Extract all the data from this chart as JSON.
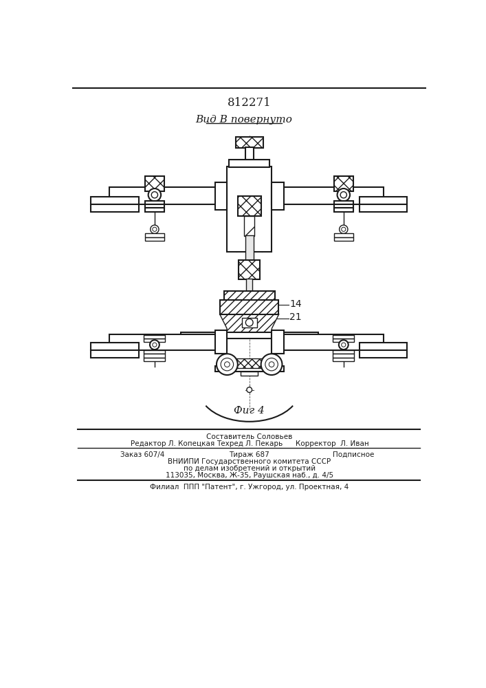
{
  "patent_number": "812271",
  "view_label": "Вид В повернуто",
  "fig_label": "Фиг 4",
  "label_14": "14",
  "label_21": "21",
  "footer_line1": "Составитель Соловьев",
  "footer_line2_left": "Редактор Л. Копецкая",
  "footer_line2_center": "Техред Л. Пекарь",
  "footer_line2_right": "Корректор  Л. Иван",
  "footer_line3_left": "Заказ 607/4",
  "footer_line3_center": "Тираж 687",
  "footer_line3_right": "Подписное",
  "footer_line4": "ВНИИПИ Государственного комитета СССР",
  "footer_line5": "по делам изобретений и открытий",
  "footer_line6": "113035, Москва, Ж-35, Раушская наб., д. 4/5",
  "footer_line7": "Филиал  ППП \"Патент\", г. Ужгород, ул. Проектная, 4",
  "bg_color": "#ffffff",
  "line_color": "#1a1a1a"
}
